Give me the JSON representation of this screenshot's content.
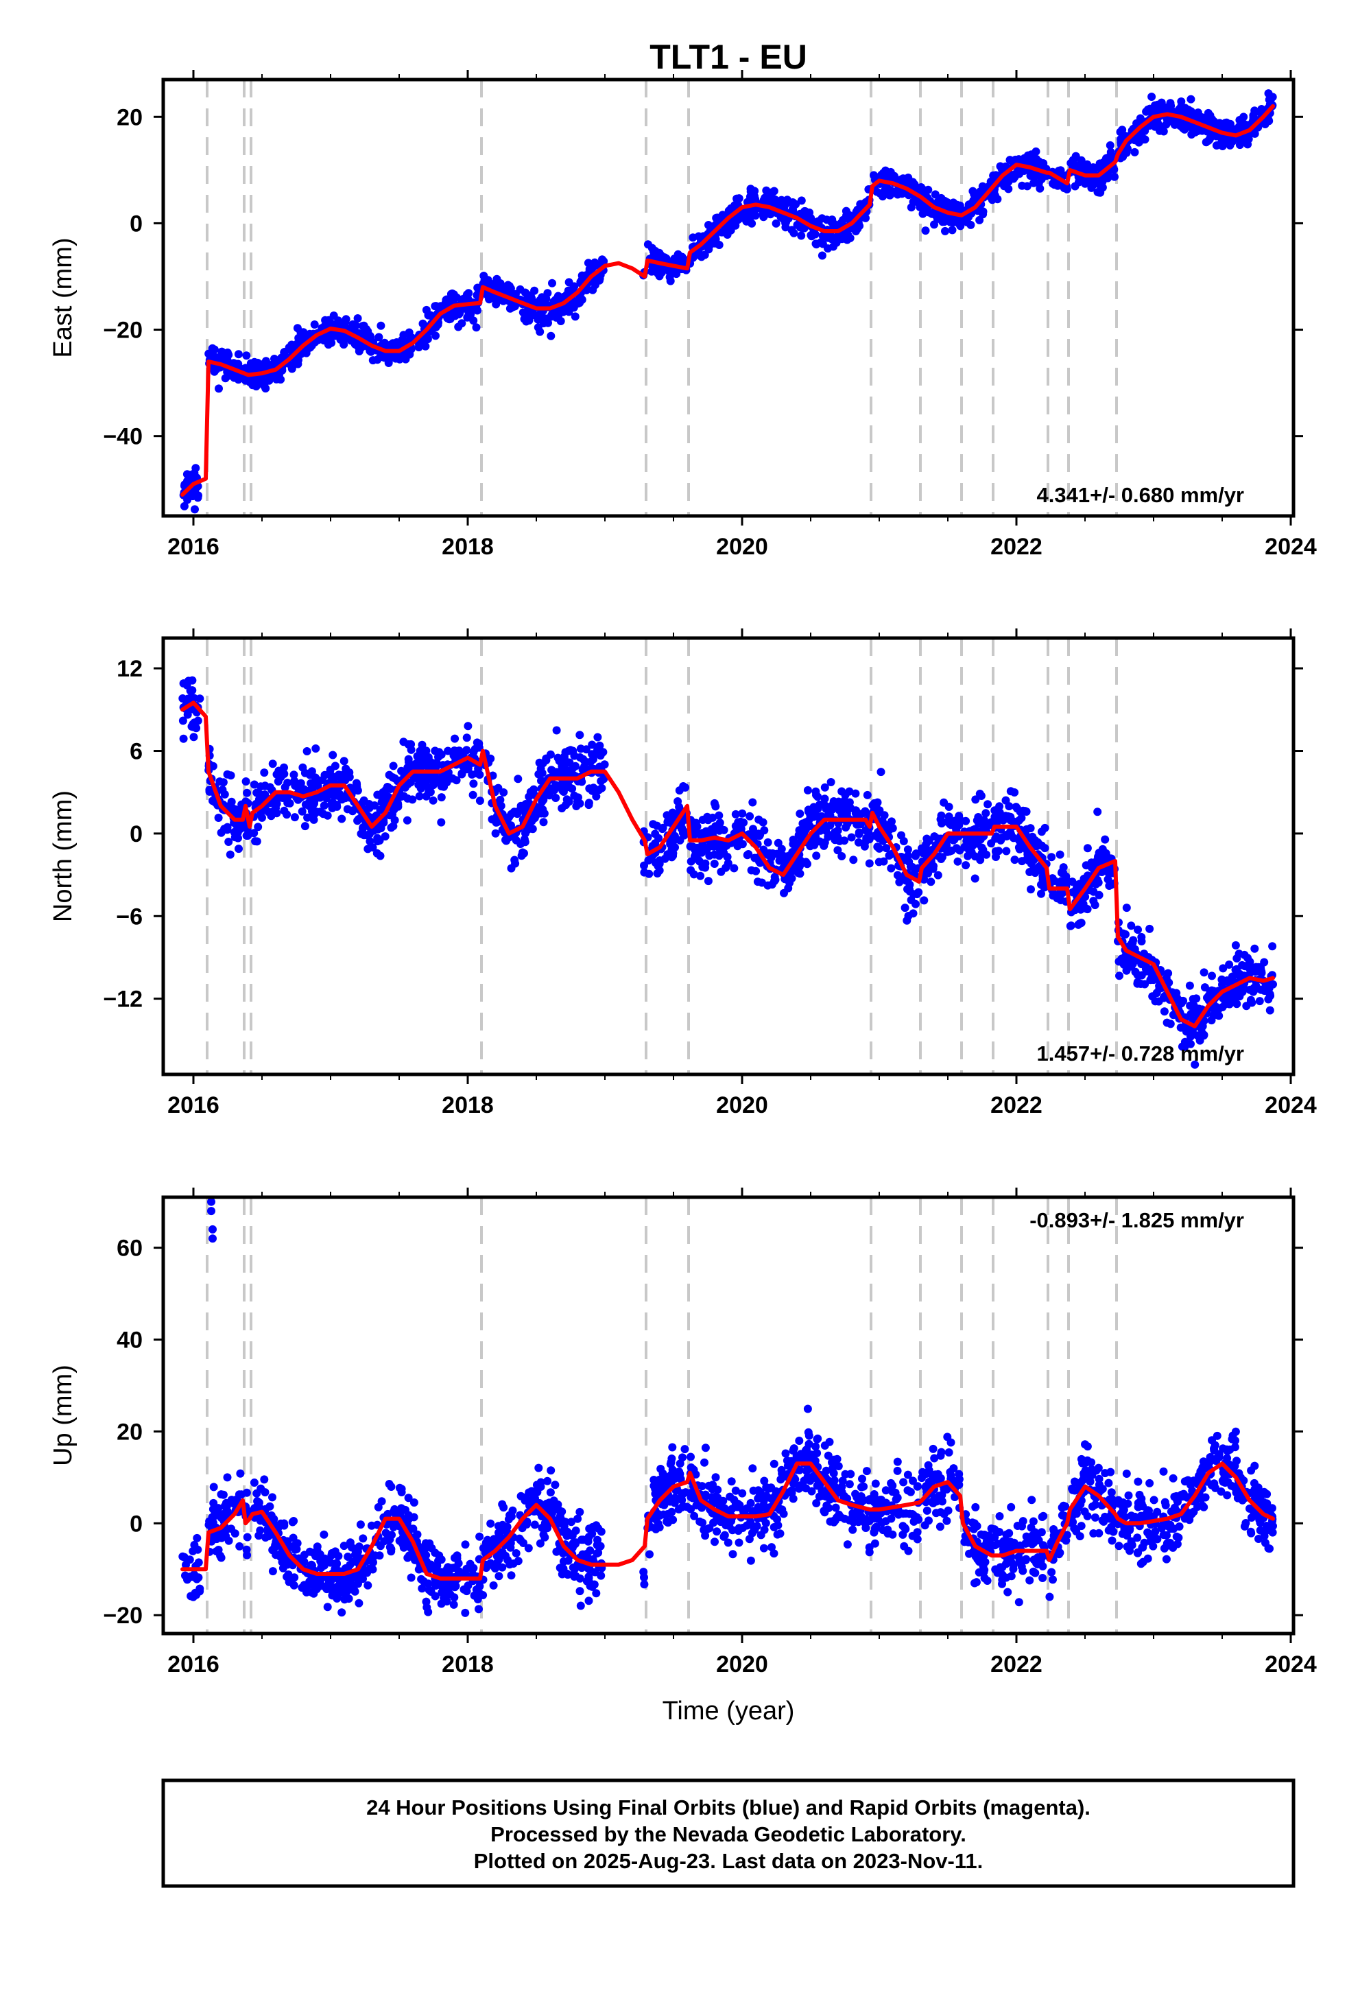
{
  "title": "TLT1 - EU",
  "xlabel": "Time (year)",
  "caption": {
    "lines": [
      "24 Hour Positions Using Final Orbits (blue) and Rapid Orbits (magenta).",
      "Processed by the Nevada Geodetic Laboratory.",
      "Plotted on 2025-Aug-23. Last data on 2023-Nov-11."
    ]
  },
  "colors": {
    "points": "#0000ff",
    "model": "#ff0000",
    "events": "#c8c8c8",
    "frame": "#000000"
  },
  "chart_data": [
    {
      "type": "scatter",
      "ylabel": "East (mm)",
      "rate": "4.341+/- 0.680 mm/yr",
      "rate_position": "bottom-right",
      "xlim": [
        2015.78,
        2024.02
      ],
      "ylim": [
        -55,
        27
      ],
      "xticks": [
        2016,
        2018,
        2020,
        2022,
        2024
      ],
      "xtick_labels": [
        "2016",
        "2018",
        "2020",
        "2022",
        "2024"
      ],
      "yticks": [
        20,
        0,
        -20,
        -40
      ],
      "ytick_labels": [
        "20",
        "0",
        "−20",
        "−40"
      ],
      "events": [
        2016.1,
        2016.37,
        2016.42,
        2018.1,
        2019.3,
        2019.61,
        2020.94,
        2021.3,
        2021.6,
        2021.83,
        2022.23,
        2022.38,
        2022.73
      ],
      "series": [
        {
          "x": [
            2015.92,
            2016.0,
            2016.09
          ],
          "values": [
            -51,
            -49,
            -48
          ]
        },
        {
          "x": [
            2016.11,
            2016.2,
            2016.3,
            2016.4,
            2016.5,
            2016.6,
            2016.7,
            2016.8,
            2016.9,
            2017.0,
            2017.1,
            2017.2,
            2017.3,
            2017.4,
            2017.5,
            2017.6,
            2017.7,
            2017.8,
            2017.9,
            2018.0,
            2018.09
          ],
          "values": [
            -26,
            -26.5,
            -27.5,
            -28.5,
            -28.2,
            -27.5,
            -25.5,
            -23,
            -21,
            -19.8,
            -20.2,
            -21.5,
            -23,
            -24,
            -24,
            -22.5,
            -20,
            -17,
            -15.5,
            -15.2,
            -15
          ]
        },
        {
          "x": [
            2018.11,
            2018.2,
            2018.3,
            2018.4,
            2018.5,
            2018.6,
            2018.7,
            2018.8,
            2018.9,
            2019.0,
            2019.1,
            2019.2,
            2019.29
          ],
          "values": [
            -12,
            -13,
            -14,
            -15,
            -16,
            -16,
            -15,
            -13,
            -10,
            -8,
            -7.5,
            -8.5,
            -10
          ]
        },
        {
          "x": [
            2019.31,
            2019.4,
            2019.5,
            2019.6
          ],
          "values": [
            -7,
            -7.5,
            -8,
            -8.5
          ]
        },
        {
          "x": [
            2019.62,
            2019.7,
            2019.8,
            2019.9,
            2020.0,
            2020.1,
            2020.2,
            2020.3,
            2020.4,
            2020.5,
            2020.6,
            2020.7,
            2020.8,
            2020.93
          ],
          "values": [
            -5.5,
            -4,
            -1.5,
            1,
            3,
            3.5,
            3,
            2,
            1,
            -0.5,
            -1.5,
            -1.5,
            0,
            3.5
          ]
        },
        {
          "x": [
            2020.95,
            2021.0,
            2021.1,
            2021.2,
            2021.3,
            2021.4,
            2021.5,
            2021.6,
            2021.7,
            2021.8,
            2021.9,
            2022.0,
            2022.1,
            2022.22
          ],
          "values": [
            7,
            8,
            7.5,
            6.5,
            5,
            3,
            2,
            1.5,
            3,
            6,
            9,
            11,
            10.5,
            9.5
          ]
        },
        {
          "x": [
            2022.24,
            2022.37
          ],
          "values": [
            9.5,
            7.5
          ]
        },
        {
          "x": [
            2022.39,
            2022.5,
            2022.6,
            2022.72
          ],
          "values": [
            10,
            9,
            9,
            11.5
          ]
        },
        {
          "x": [
            2022.74,
            2022.8,
            2022.9,
            2023.0,
            2023.1,
            2023.2,
            2023.3,
            2023.4,
            2023.5,
            2023.6,
            2023.7,
            2023.8,
            2023.87
          ],
          "values": [
            13,
            15.5,
            18,
            20,
            20.5,
            20,
            19,
            18,
            17,
            16.5,
            17.5,
            20,
            22
          ]
        }
      ],
      "scatter": {
        "count": 2100,
        "x_range": [
          2015.92,
          2023.87
        ],
        "noise": 1.4,
        "gaps": [
          [
            2016.05,
            2016.1
          ],
          [
            2019.0,
            2019.28
          ]
        ]
      }
    },
    {
      "type": "scatter",
      "ylabel": "North (mm)",
      "rate": "1.457+/- 0.728 mm/yr",
      "rate_position": "bottom-right",
      "xlim": [
        2015.78,
        2024.02
      ],
      "ylim": [
        -17.5,
        14.2
      ],
      "xticks": [
        2016,
        2018,
        2020,
        2022,
        2024
      ],
      "xtick_labels": [
        "2016",
        "2018",
        "2020",
        "2022",
        "2024"
      ],
      "yticks": [
        12,
        6,
        0,
        -6,
        -12
      ],
      "ytick_labels": [
        "12",
        "6",
        "0",
        "−6",
        "−12"
      ],
      "events": [
        2016.1,
        2016.37,
        2016.42,
        2018.1,
        2019.3,
        2019.61,
        2020.94,
        2021.3,
        2021.6,
        2021.83,
        2022.23,
        2022.38,
        2022.73
      ],
      "series": [
        {
          "x": [
            2015.92,
            2016.0,
            2016.09
          ],
          "values": [
            9,
            9.5,
            8.5
          ]
        },
        {
          "x": [
            2016.11,
            2016.2,
            2016.3,
            2016.36
          ],
          "values": [
            4.5,
            2,
            1,
            1
          ]
        },
        {
          "x": [
            2016.38,
            2016.41
          ],
          "values": [
            2,
            0.5
          ]
        },
        {
          "x": [
            2016.43,
            2016.5,
            2016.6,
            2016.7,
            2016.8,
            2016.9,
            2017.0,
            2017.1,
            2017.2,
            2017.3,
            2017.4,
            2017.5,
            2017.6,
            2017.7,
            2017.8,
            2017.9,
            2018.0,
            2018.09
          ],
          "values": [
            1.5,
            2,
            3,
            3,
            2.7,
            3,
            3.5,
            3.5,
            2,
            0.5,
            1.5,
            3.5,
            4.5,
            4.5,
            4.5,
            5,
            5.5,
            5
          ]
        },
        {
          "x": [
            2018.11,
            2018.2,
            2018.3,
            2018.4,
            2018.5,
            2018.6,
            2018.7,
            2018.8,
            2018.9,
            2019.0,
            2019.1,
            2019.2,
            2019.29
          ],
          "values": [
            6,
            2,
            0,
            0.5,
            2.5,
            4,
            4,
            4,
            4.5,
            4.5,
            3,
            1,
            -0.5
          ]
        },
        {
          "x": [
            2019.31,
            2019.4,
            2019.5,
            2019.6
          ],
          "values": [
            -1.5,
            -1,
            0.5,
            2
          ]
        },
        {
          "x": [
            2019.62,
            2019.7,
            2019.8,
            2019.9,
            2020.0,
            2020.1,
            2020.2,
            2020.3,
            2020.4,
            2020.5,
            2020.6,
            2020.7,
            2020.8,
            2020.9,
            2020.93
          ],
          "values": [
            -0.5,
            -0.5,
            -0.3,
            -0.5,
            0,
            -1,
            -2.5,
            -3,
            -1.5,
            0,
            1,
            1,
            1,
            1,
            0.5
          ]
        },
        {
          "x": [
            2020.95,
            2021.0,
            2021.1,
            2021.2,
            2021.29
          ],
          "values": [
            1.5,
            0.5,
            -1,
            -3,
            -3.5
          ]
        },
        {
          "x": [
            2021.31,
            2021.4,
            2021.5,
            2021.59
          ],
          "values": [
            -2.5,
            -1.5,
            0,
            0
          ]
        },
        {
          "x": [
            2021.61,
            2021.7,
            2021.82
          ],
          "values": [
            0,
            0,
            0
          ]
        },
        {
          "x": [
            2021.84,
            2021.9,
            2022.0,
            2022.1,
            2022.22
          ],
          "values": [
            0.5,
            0.5,
            0.5,
            -1,
            -2.5
          ]
        },
        {
          "x": [
            2022.24,
            2022.3,
            2022.37
          ],
          "values": [
            -4,
            -4,
            -4
          ]
        },
        {
          "x": [
            2022.39,
            2022.5,
            2022.6,
            2022.72
          ],
          "values": [
            -5.5,
            -4,
            -2.5,
            -2
          ]
        },
        {
          "x": [
            2022.74,
            2022.8,
            2022.9,
            2023.0,
            2023.1,
            2023.2,
            2023.3,
            2023.4,
            2023.5,
            2023.6,
            2023.7,
            2023.8,
            2023.87
          ],
          "values": [
            -7.5,
            -8.5,
            -9,
            -9.5,
            -11.5,
            -13.5,
            -14,
            -12.5,
            -11.5,
            -11,
            -10.5,
            -10.7,
            -10.5
          ]
        }
      ],
      "scatter": {
        "count": 2100,
        "x_range": [
          2015.92,
          2023.87
        ],
        "noise": 1.1,
        "gaps": [
          [
            2016.05,
            2016.1
          ],
          [
            2019.0,
            2019.28
          ]
        ]
      }
    },
    {
      "type": "scatter",
      "ylabel": "Up (mm)",
      "rate": "-0.893+/- 1.825 mm/yr",
      "rate_position": "top-right",
      "xlim": [
        2015.78,
        2024.02
      ],
      "ylim": [
        -24,
        71
      ],
      "xticks": [
        2016,
        2018,
        2020,
        2022,
        2024
      ],
      "xtick_labels": [
        "2016",
        "2018",
        "2020",
        "2022",
        "2024"
      ],
      "yticks": [
        60,
        40,
        20,
        0,
        -20
      ],
      "ytick_labels": [
        "60",
        "40",
        "20",
        "0",
        "−20"
      ],
      "events": [
        2016.1,
        2016.37,
        2016.42,
        2018.1,
        2019.3,
        2019.61,
        2020.94,
        2021.3,
        2021.6,
        2021.83,
        2022.23,
        2022.38,
        2022.73
      ],
      "outliers": {
        "x": [
          2016.13,
          2016.13,
          2016.14,
          2016.14
        ],
        "values": [
          68,
          70,
          64,
          62
        ]
      },
      "series": [
        {
          "x": [
            2015.92,
            2016.0,
            2016.09
          ],
          "values": [
            -10,
            -10,
            -10
          ]
        },
        {
          "x": [
            2016.11,
            2016.2,
            2016.3,
            2016.36
          ],
          "values": [
            -2,
            -1,
            2,
            5
          ]
        },
        {
          "x": [
            2016.38,
            2016.41
          ],
          "values": [
            0,
            1
          ]
        },
        {
          "x": [
            2016.43,
            2016.5,
            2016.6,
            2016.7,
            2016.8,
            2016.9,
            2017.0,
            2017.1,
            2017.2,
            2017.3,
            2017.4,
            2017.5,
            2017.6,
            2017.7,
            2017.8,
            2017.9,
            2018.0,
            2018.09
          ],
          "values": [
            2,
            2.5,
            -2,
            -7,
            -10,
            -11,
            -11,
            -11,
            -10,
            -5,
            1,
            1,
            -4,
            -11,
            -12,
            -12,
            -12,
            -12
          ]
        },
        {
          "x": [
            2018.11,
            2018.2,
            2018.3,
            2018.4,
            2018.5,
            2018.6,
            2018.7,
            2018.8,
            2018.9,
            2019.0,
            2019.1,
            2019.2,
            2019.29
          ],
          "values": [
            -8,
            -6,
            -3,
            1,
            4,
            1,
            -5,
            -8,
            -9,
            -9,
            -9,
            -8,
            -5
          ]
        },
        {
          "x": [
            2019.31,
            2019.4,
            2019.5,
            2019.6
          ],
          "values": [
            1,
            5,
            8,
            9
          ]
        },
        {
          "x": [
            2019.62,
            2019.7,
            2019.8,
            2019.9,
            2020.0,
            2020.1,
            2020.2,
            2020.3,
            2020.4,
            2020.5,
            2020.6,
            2020.7,
            2020.8,
            2020.93
          ],
          "values": [
            11,
            5,
            3,
            1.5,
            1.5,
            1.5,
            2,
            7,
            13,
            13,
            9,
            5,
            4,
            3
          ]
        },
        {
          "x": [
            2020.95,
            2021.0,
            2021.1,
            2021.2,
            2021.29
          ],
          "values": [
            3,
            3,
            3.5,
            4,
            4.5
          ]
        },
        {
          "x": [
            2021.31,
            2021.4,
            2021.5,
            2021.59
          ],
          "values": [
            5,
            8,
            9,
            6
          ]
        },
        {
          "x": [
            2021.61,
            2021.7,
            2021.82
          ],
          "values": [
            0,
            -5,
            -7
          ]
        },
        {
          "x": [
            2021.84,
            2021.9,
            2022.0,
            2022.1,
            2022.22
          ],
          "values": [
            -7,
            -7,
            -6,
            -6,
            -6
          ]
        },
        {
          "x": [
            2022.24,
            2022.3,
            2022.37
          ],
          "values": [
            -8,
            -4,
            0
          ]
        },
        {
          "x": [
            2022.39,
            2022.5,
            2022.6,
            2022.72
          ],
          "values": [
            3,
            8,
            6,
            2
          ]
        },
        {
          "x": [
            2022.74,
            2022.8,
            2022.9,
            2023.0,
            2023.1,
            2023.2,
            2023.3,
            2023.4,
            2023.5,
            2023.6,
            2023.7,
            2023.8,
            2023.87
          ],
          "values": [
            1,
            0,
            0,
            0.5,
            1,
            2,
            6,
            11,
            13,
            10,
            5,
            2,
            1
          ]
        }
      ],
      "scatter": {
        "count": 2100,
        "x_range": [
          2015.92,
          2023.87
        ],
        "noise": 3.8,
        "gaps": [
          [
            2016.05,
            2016.1
          ],
          [
            2019.0,
            2019.28
          ]
        ]
      }
    }
  ]
}
